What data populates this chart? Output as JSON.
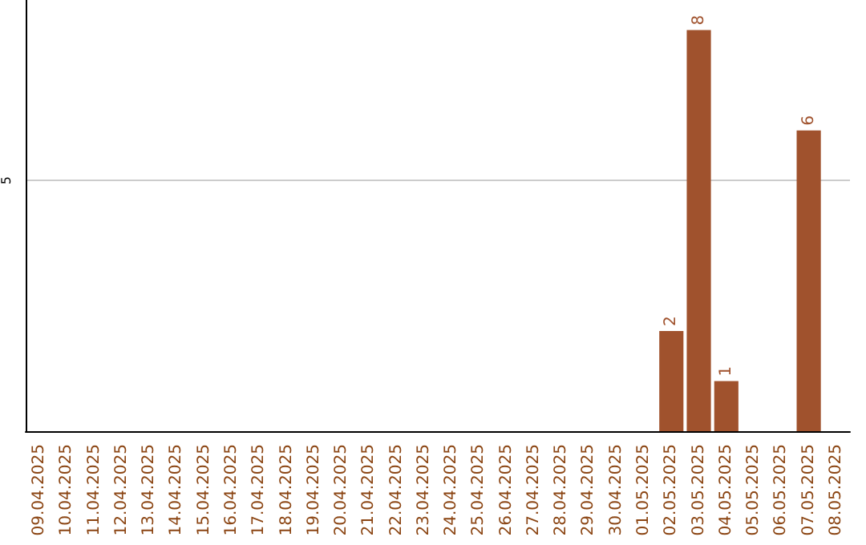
{
  "chart_data": {
    "type": "bar",
    "categories": [
      "09.04.2025",
      "10.04.2025",
      "11.04.2025",
      "12.04.2025",
      "13.04.2025",
      "14.04.2025",
      "15.04.2025",
      "16.04.2025",
      "17.04.2025",
      "18.04.2025",
      "19.04.2025",
      "20.04.2025",
      "21.04.2025",
      "22.04.2025",
      "23.04.2025",
      "24.04.2025",
      "25.04.2025",
      "26.04.2025",
      "27.04.2025",
      "28.04.2025",
      "29.04.2025",
      "30.04.2025",
      "01.05.2025",
      "02.05.2025",
      "03.05.2025",
      "04.05.2025",
      "05.05.2025",
      "06.05.2025",
      "07.05.2025",
      "08.05.2025"
    ],
    "values": [
      null,
      null,
      null,
      null,
      null,
      null,
      null,
      null,
      null,
      null,
      null,
      null,
      null,
      null,
      null,
      null,
      null,
      null,
      null,
      null,
      null,
      null,
      null,
      2,
      8,
      1,
      null,
      null,
      6,
      null
    ],
    "color": "#a0522d",
    "ylim": [
      0,
      8.6
    ],
    "yticks": [
      5
    ],
    "grid": "y",
    "data_labels": true
  }
}
